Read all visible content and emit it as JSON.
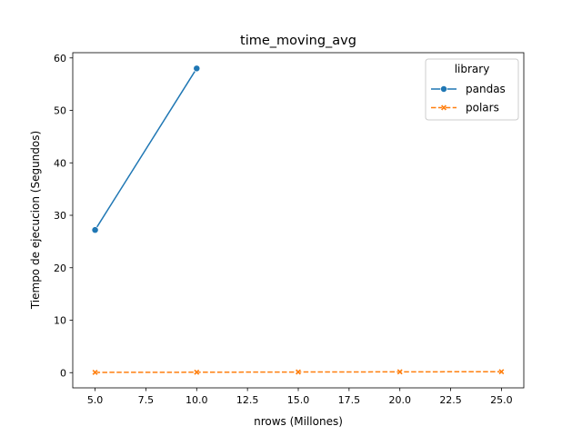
{
  "chart_data": {
    "type": "line",
    "title": "time_moving_avg",
    "xlabel": "nrows (Millones)",
    "ylabel": "Tiempo de ejecucion (Segundos)",
    "xlim": [
      3.9,
      26.1
    ],
    "ylim": [
      -2.9,
      61.0
    ],
    "xticks": [
      5.0,
      7.5,
      10.0,
      12.5,
      15.0,
      17.5,
      20.0,
      22.5,
      25.0
    ],
    "xtick_labels": [
      "5.0",
      "7.5",
      "10.0",
      "12.5",
      "15.0",
      "17.5",
      "20.0",
      "22.5",
      "25.0"
    ],
    "yticks": [
      0,
      10,
      20,
      30,
      40,
      50,
      60
    ],
    "ytick_labels": [
      "0",
      "10",
      "20",
      "30",
      "40",
      "50",
      "60"
    ],
    "grid": false,
    "legend": {
      "title": "library",
      "placement": "top-right"
    },
    "series": [
      {
        "name": "pandas",
        "color": "#1f77b4",
        "marker": "circle",
        "linestyle": "solid",
        "x": [
          5,
          10
        ],
        "y": [
          27.2,
          58.0
        ]
      },
      {
        "name": "polars",
        "color": "#ff7f0e",
        "marker": "x",
        "linestyle": "dashed",
        "x": [
          5,
          10,
          15,
          20,
          25
        ],
        "y": [
          0.05,
          0.08,
          0.12,
          0.15,
          0.18
        ]
      }
    ]
  }
}
